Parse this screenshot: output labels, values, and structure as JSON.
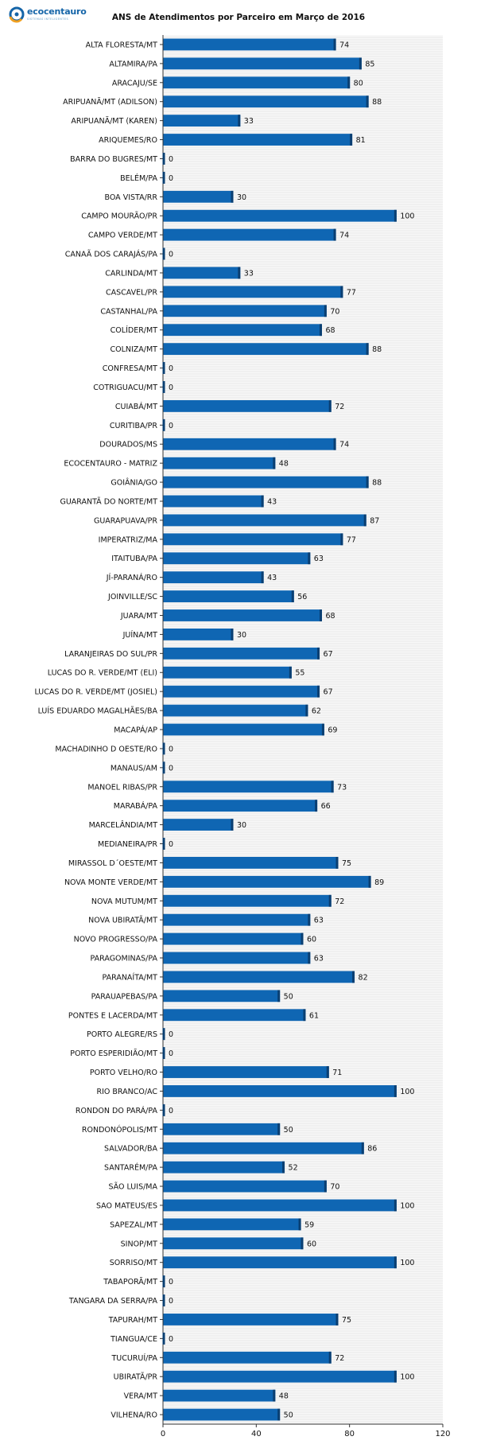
{
  "brand": {
    "name": "ecocentauro",
    "tagline": "SISTEMAS INTELIGENTES",
    "colors": {
      "primary": "#1565a8",
      "accent": "#f0a020"
    }
  },
  "chart_data": {
    "type": "bar",
    "orientation": "horizontal",
    "title": "ANS de Atendimentos por Parceiro em Março de 2016",
    "xlabel": "",
    "ylabel": "",
    "xlim": [
      0,
      120
    ],
    "xticks": [
      0,
      40,
      80,
      120
    ],
    "grid": true,
    "bar_color": "#0f66b3",
    "categories": [
      "ALTA FLORESTA/MT",
      "ALTAMIRA/PA",
      "ARACAJU/SE",
      "ARIPUANÃ/MT (ADILSON)",
      "ARIPUANÃ/MT (KAREN)",
      "ARIQUEMES/RO",
      "BARRA DO BUGRES/MT",
      "BELÉM/PA",
      "BOA VISTA/RR",
      "CAMPO MOURÃO/PR",
      "CAMPO VERDE/MT",
      "CANAÃ DOS CARAJÁS/PA",
      "CARLINDA/MT",
      "CASCAVEL/PR",
      "CASTANHAL/PA",
      "COLÍDER/MT",
      "COLNIZA/MT",
      "CONFRESA/MT",
      "COTRIGUACU/MT",
      "CUIABÁ/MT",
      "CURITIBA/PR",
      "DOURADOS/MS",
      "ECOCENTAURO - MATRIZ",
      "GOIÂNIA/GO",
      "GUARANTÃ DO NORTE/MT",
      "GUARAPUAVA/PR",
      "IMPERATRIZ/MA",
      "ITAITUBA/PA",
      "JÍ-PARANÁ/RO",
      "JOINVILLE/SC",
      "JUARA/MT",
      "JUÍNA/MT",
      "LARANJEIRAS DO SUL/PR",
      "LUCAS DO R. VERDE/MT (ELI)",
      "LUCAS DO R. VERDE/MT (JOSIEL)",
      "LUÍS EDUARDO MAGALHÃES/BA",
      "MACAPÁ/AP",
      "MACHADINHO D OESTE/RO",
      "MANAUS/AM",
      "MANOEL RIBAS/PR",
      "MARABÁ/PA",
      "MARCELÂNDIA/MT",
      "MEDIANEIRA/PR",
      "MIRASSOL D´OESTE/MT",
      "NOVA MONTE VERDE/MT",
      "NOVA MUTUM/MT",
      "NOVA UBIRATÃ/MT",
      "NOVO PROGRESSO/PA",
      "PARAGOMINAS/PA",
      "PARANAÍTA/MT",
      "PARAUAPEBAS/PA",
      "PONTES E LACERDA/MT",
      "PORTO ALEGRE/RS",
      "PORTO ESPERIDIÃO/MT",
      "PORTO VELHO/RO",
      "RIO BRANCO/AC",
      "RONDON DO PARÁ/PA",
      "RONDONÓPOLIS/MT",
      "SALVADOR/BA",
      "SANTARÉM/PA",
      "SÃO LUIS/MA",
      "SAO MATEUS/ES",
      "SAPEZAL/MT",
      "SINOP/MT",
      "SORRISO/MT",
      "TABAPORÃ/MT",
      "TANGARA DA SERRA/PA",
      "TAPURAH/MT",
      "TIANGUA/CE",
      "TUCURUÍ/PA",
      "UBIRATÃ/PR",
      "VERA/MT",
      "VILHENA/RO"
    ],
    "values": [
      74,
      85,
      80,
      88,
      33,
      81,
      0,
      0,
      30,
      100,
      74,
      0,
      33,
      77,
      70,
      68,
      88,
      0,
      0,
      72,
      0,
      74,
      48,
      88,
      43,
      87,
      77,
      63,
      43,
      56,
      68,
      30,
      67,
      55,
      67,
      62,
      69,
      0,
      0,
      73,
      66,
      30,
      0,
      75,
      89,
      72,
      63,
      60,
      63,
      82,
      50,
      61,
      0,
      0,
      71,
      100,
      0,
      50,
      86,
      52,
      70,
      100,
      59,
      60,
      100,
      0,
      0,
      75,
      0,
      72,
      100,
      48,
      50
    ]
  }
}
